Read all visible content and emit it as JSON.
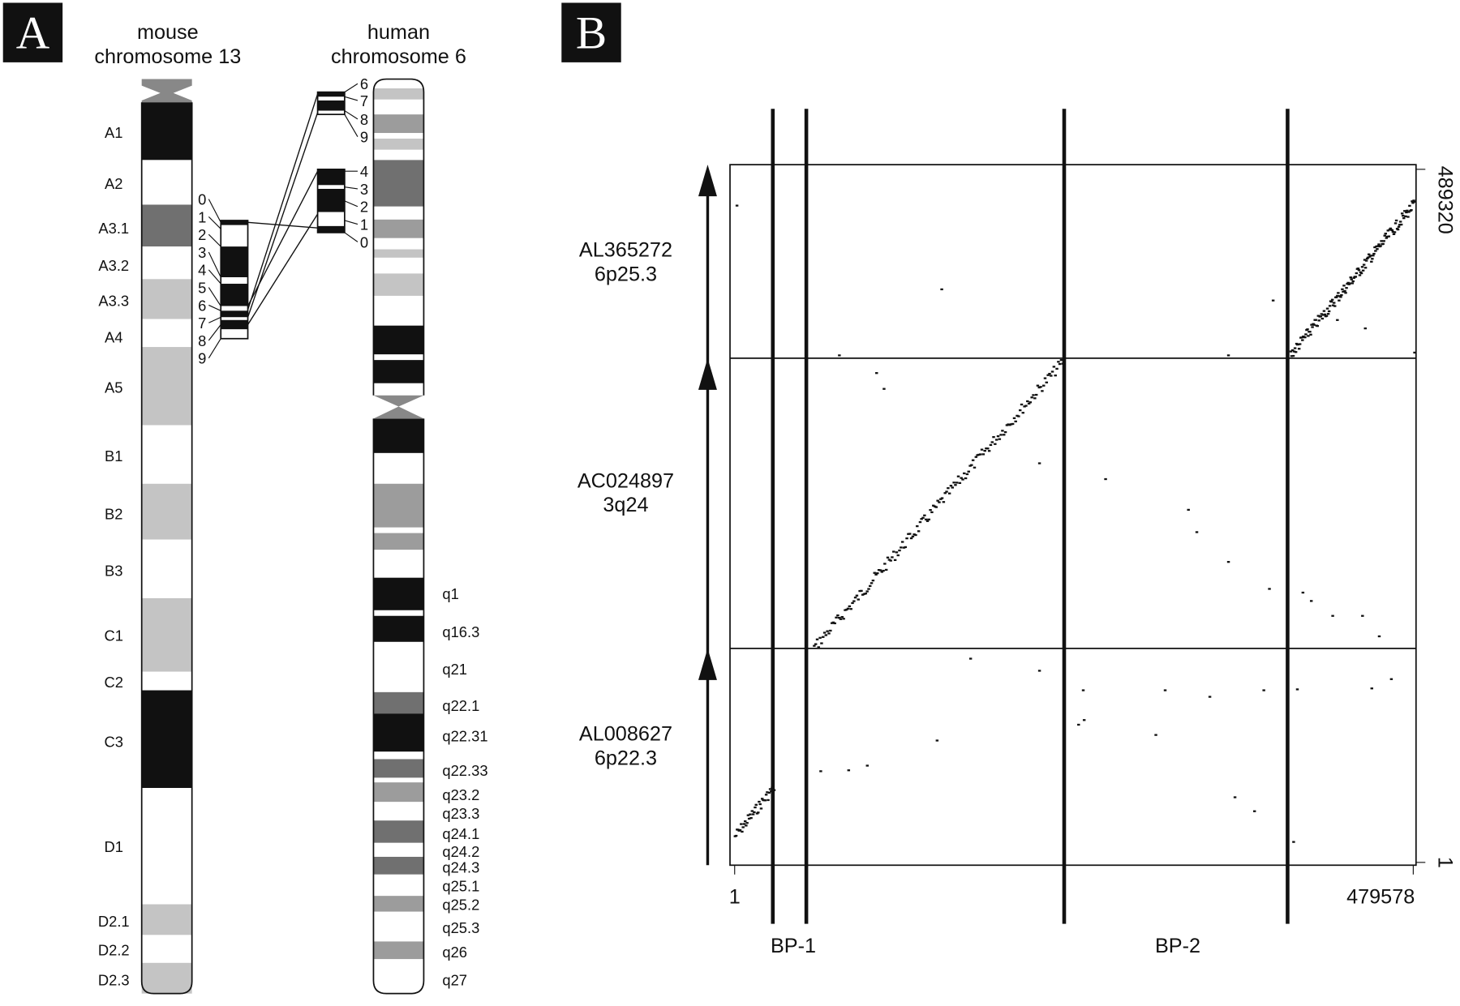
{
  "panel_a": {
    "label": "A",
    "mouse_title": [
      "mouse",
      "chromosome 13"
    ],
    "human_title": [
      "human",
      "chromosome 6"
    ],
    "mouse_bands": [
      "A1",
      "A2",
      "A3.1",
      "A3.2",
      "A3.3",
      "A4",
      "A5",
      "B1",
      "B2",
      "B3",
      "C1",
      "C2",
      "C3",
      "D1",
      "D2.1",
      "D2.2",
      "D2.3"
    ],
    "human_bands": [
      "q1",
      "q16.3",
      "q21",
      "q22.1",
      "q22.31",
      "q22.33",
      "q23.2",
      "q23.3",
      "q24.1",
      "q24.2",
      "q24.3",
      "q25.1",
      "q25.2",
      "q25.3",
      "q26",
      "q27"
    ],
    "mouse_markers": [
      "0",
      "1",
      "2",
      "3",
      "4",
      "5",
      "6",
      "7",
      "8",
      "9"
    ],
    "human_markers": [
      "6",
      "7",
      "8",
      "9",
      "4",
      "3",
      "2",
      "1",
      "0"
    ]
  },
  "panel_b": {
    "label": "B",
    "clones": [
      {
        "name": "AL365272",
        "location": "6p25.3"
      },
      {
        "name": "AC024897",
        "location": "3q24"
      },
      {
        "name": "AL008627",
        "location": "6p22.3"
      }
    ],
    "x_start": "1",
    "x_end": "479578",
    "y_start": "1",
    "y_end": "489320",
    "breakpoints": [
      "BP-1",
      "BP-2"
    ]
  }
}
